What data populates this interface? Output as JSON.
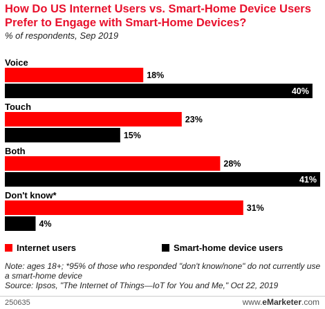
{
  "header": {
    "title": "How Do US Internet Users vs. Smart-Home Device Users Prefer to Engage with Smart-Home Devices?",
    "subtitle": "% of respondents, Sep 2019"
  },
  "chart_data": {
    "type": "bar",
    "orientation": "horizontal",
    "categories": [
      "Voice",
      "Touch",
      "Both",
      "Don't know*"
    ],
    "series": [
      {
        "name": "Internet users",
        "values": [
          18,
          23,
          28,
          31
        ],
        "color": "#ff0000"
      },
      {
        "name": "Smart-home device users",
        "values": [
          40,
          15,
          41,
          4
        ],
        "color": "#000000"
      }
    ],
    "value_suffix": "%",
    "xlim": [
      0,
      41
    ],
    "grid": false,
    "legend": "bottom"
  },
  "notes": {
    "line1": "Note: ages 18+; *95% of those who responded \"don't know/none\" do not currently use a smart-home device",
    "line2": "Source: Ipsos, \"The Internet of Things—IoT for You and Me,\" Oct 22, 2019"
  },
  "footer": {
    "id": "250635",
    "brand_prefix": "www.",
    "brand_bold": "eMarketer",
    "brand_suffix": ".com"
  }
}
